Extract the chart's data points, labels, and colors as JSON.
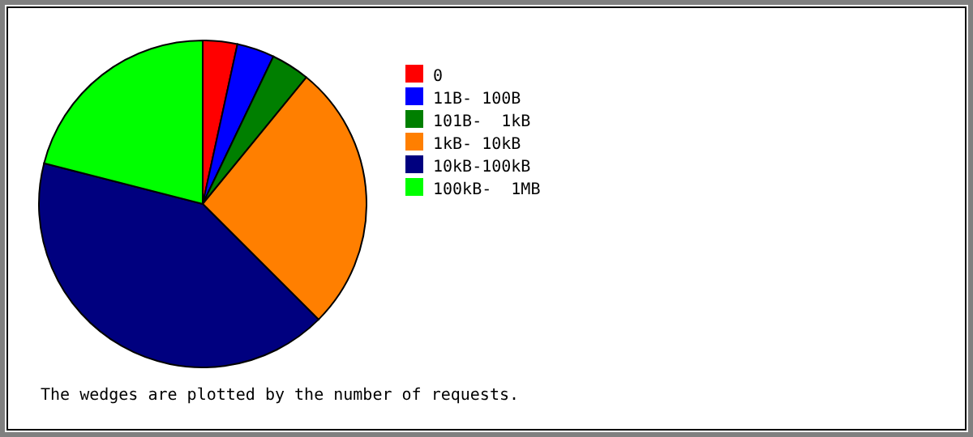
{
  "chart_data": {
    "type": "pie",
    "categories": [
      "0",
      "11B- 100B",
      "101B-  1kB",
      "1kB- 10kB",
      "10kB-100kB",
      "100kB-  1MB"
    ],
    "values": [
      3.4,
      3.7,
      3.8,
      26.6,
      41.5,
      21.0
    ],
    "colors": [
      "#ff0000",
      "#0000ff",
      "#007f00",
      "#ff7f00",
      "#00007f",
      "#00ff00"
    ],
    "legend": "right",
    "annotations": [
      "The wedges are plotted by the number of requests."
    ]
  }
}
